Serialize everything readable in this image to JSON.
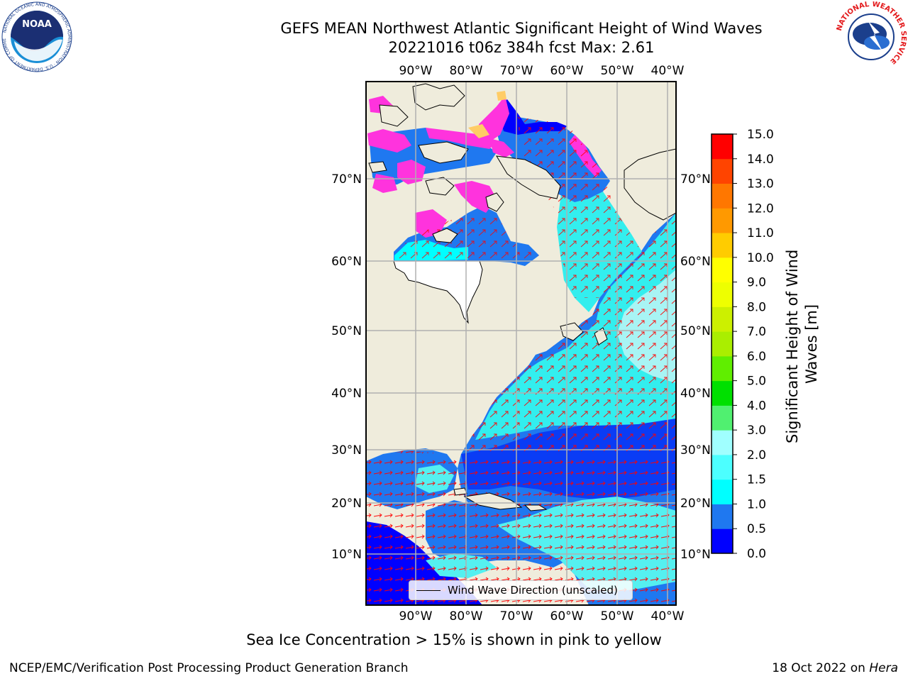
{
  "header": {
    "title_line1": "GEFS MEAN Northwest Atlantic Significant Height of Wind Waves",
    "title_line2": "20221016 t06z 384h fcst   Max: 2.61"
  },
  "logos": {
    "left": "noaa-logo",
    "left_text": "NOAA",
    "left_ring_text": "NATIONAL OCEANIC AND ATMOSPHERIC ADMINISTRATION · U.S. DEPARTMENT OF COMMERCE",
    "right": "nws-logo",
    "right_ring_text": "NATIONAL WEATHER SERVICE"
  },
  "map": {
    "lon_ticks": [
      "90°W",
      "80°W",
      "70°W",
      "60°W",
      "50°W",
      "40°W"
    ],
    "lat_ticks": [
      "70°N",
      "60°N",
      "50°N",
      "40°N",
      "30°N",
      "20°N",
      "10°N"
    ],
    "legend_label": "Wind Wave Direction (unscaled)",
    "colors": {
      "land": "#efecdc",
      "ocean_low": "#0000ff",
      "ocean_mid": "#1f78f0",
      "ocean_high": "#00ffff",
      "ice_pink": "#ff00ff",
      "arrow": "#ff0000",
      "grid": "#b0b0b0"
    }
  },
  "colorbar": {
    "label": "Significant Height of Wind Waves [m]",
    "label_line1": "Significant Height of Wind",
    "label_line2": "Waves [m]",
    "ticks": [
      "0.0",
      "0.5",
      "1.0",
      "1.5",
      "2.0",
      "3.0",
      "4.0",
      "5.0",
      "6.0",
      "7.0",
      "8.0",
      "9.0",
      "10.0",
      "11.0",
      "12.0",
      "13.0",
      "14.0",
      "15.0"
    ],
    "colors": [
      "#0000ff",
      "#1f78f0",
      "#00ffff",
      "#4cffff",
      "#a0ffff",
      "#50f070",
      "#00e000",
      "#60ee00",
      "#aaee00",
      "#ccf000",
      "#eeff00",
      "#ffff00",
      "#ffcc00",
      "#ff9900",
      "#ff7700",
      "#ff4400",
      "#ff0000"
    ]
  },
  "footnote": "Sea Ice Concentration > 15% is shown in pink to yellow",
  "footer": {
    "left": "NCEP/EMC/Verification Post Processing Product Generation Branch",
    "right_date": "18 Oct 2022 on ",
    "right_host": "Hera"
  }
}
